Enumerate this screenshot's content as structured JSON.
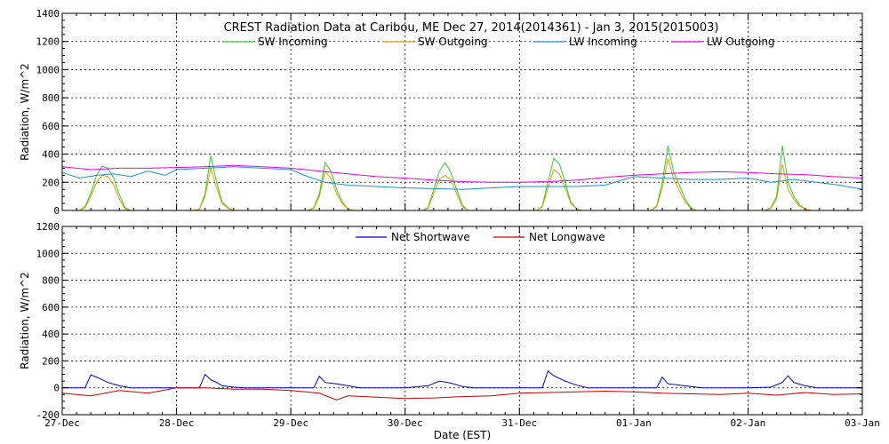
{
  "chart_data": [
    {
      "type": "line",
      "title": "CREST Radiation Data at Caribou, ME   Dec 27, 2014(2014361) - Jan  3, 2015(2015003)",
      "xlabel": "",
      "ylabel": "Radiation, W/m^2",
      "ylim": [
        0,
        1400
      ],
      "yticks": [
        "0",
        "200",
        "400",
        "600",
        "800",
        "1000",
        "1200",
        "1400"
      ],
      "xlim": [
        "27-Dec",
        "03-Jan"
      ],
      "grid": true,
      "legend_position": "top",
      "series": [
        {
          "name": "SW Incoming",
          "color": "#33cc33",
          "x": [
            0.1,
            0.15,
            0.2,
            0.25,
            0.3,
            0.35,
            0.4,
            0.45,
            0.5,
            0.55,
            0.6,
            1.1,
            1.15,
            1.2,
            1.25,
            1.3,
            1.35,
            1.4,
            1.45,
            1.5,
            1.55,
            1.6,
            2.1,
            2.15,
            2.2,
            2.25,
            2.3,
            2.35,
            2.4,
            2.45,
            2.5,
            2.55,
            2.6,
            3.1,
            3.15,
            3.2,
            3.25,
            3.3,
            3.35,
            3.4,
            3.45,
            3.5,
            3.55,
            3.6,
            4.1,
            4.15,
            4.2,
            4.25,
            4.3,
            4.35,
            4.4,
            4.45,
            4.5,
            4.55,
            4.6,
            5.1,
            5.15,
            5.2,
            5.25,
            5.3,
            5.35,
            5.4,
            5.45,
            5.5,
            5.55,
            5.6,
            6.1,
            6.15,
            6.2,
            6.25,
            6.3,
            6.35,
            6.4,
            6.45,
            6.5,
            6.55,
            6.6
          ],
          "y": [
            0,
            0,
            30,
            120,
            250,
            315,
            300,
            230,
            110,
            20,
            0,
            0,
            0,
            10,
            120,
            390,
            200,
            60,
            20,
            0,
            0,
            0,
            0,
            0,
            20,
            120,
            340,
            280,
            150,
            60,
            10,
            0,
            0,
            0,
            0,
            20,
            150,
            280,
            340,
            270,
            150,
            40,
            0,
            0,
            0,
            0,
            30,
            200,
            370,
            330,
            200,
            60,
            10,
            0,
            0,
            0,
            0,
            30,
            200,
            460,
            270,
            180,
            80,
            20,
            0,
            0,
            0,
            0,
            20,
            100,
            460,
            200,
            100,
            40,
            10,
            0,
            0
          ]
        },
        {
          "name": "SW Outgoing",
          "color": "#e69900",
          "x": [
            0.1,
            0.15,
            0.2,
            0.25,
            0.3,
            0.35,
            0.4,
            0.45,
            0.5,
            0.55,
            0.6,
            1.1,
            1.15,
            1.2,
            1.25,
            1.3,
            1.35,
            1.4,
            1.45,
            1.5,
            1.55,
            1.6,
            2.1,
            2.15,
            2.2,
            2.25,
            2.3,
            2.35,
            2.4,
            2.45,
            2.5,
            2.55,
            2.6,
            3.1,
            3.15,
            3.2,
            3.25,
            3.3,
            3.35,
            3.4,
            3.45,
            3.5,
            3.55,
            3.6,
            4.1,
            4.15,
            4.2,
            4.25,
            4.3,
            4.35,
            4.4,
            4.45,
            4.5,
            4.55,
            4.6,
            5.1,
            5.15,
            5.2,
            5.25,
            5.3,
            5.35,
            5.4,
            5.45,
            5.5,
            5.55,
            5.6,
            6.1,
            6.15,
            6.2,
            6.25,
            6.3,
            6.35,
            6.4,
            6.45,
            6.5,
            6.55,
            6.6
          ],
          "y": [
            0,
            0,
            20,
            100,
            200,
            250,
            240,
            180,
            80,
            10,
            0,
            0,
            0,
            10,
            100,
            300,
            160,
            50,
            15,
            0,
            0,
            0,
            0,
            0,
            15,
            100,
            280,
            230,
            120,
            50,
            10,
            0,
            0,
            0,
            0,
            15,
            120,
            220,
            250,
            220,
            120,
            30,
            0,
            0,
            0,
            0,
            25,
            160,
            290,
            260,
            160,
            50,
            10,
            0,
            0,
            0,
            0,
            25,
            160,
            370,
            220,
            140,
            60,
            15,
            0,
            0,
            0,
            0,
            15,
            80,
            330,
            150,
            80,
            30,
            10,
            0,
            0
          ]
        },
        {
          "name": "LW Incoming",
          "color": "#1a8fd6",
          "x": [
            0.0,
            0.15,
            0.3,
            0.45,
            0.6,
            0.75,
            0.9,
            1.0,
            1.25,
            1.5,
            1.75,
            2.0,
            2.15,
            2.3,
            2.5,
            2.75,
            3.0,
            3.5,
            4.0,
            4.25,
            4.5,
            4.75,
            5.0,
            5.25,
            5.5,
            5.75,
            6.0,
            6.2,
            6.4,
            6.6,
            6.8,
            7.0
          ],
          "y": [
            270,
            230,
            250,
            260,
            240,
            280,
            250,
            290,
            300,
            310,
            300,
            290,
            240,
            200,
            180,
            170,
            160,
            150,
            170,
            170,
            170,
            180,
            240,
            230,
            220,
            220,
            230,
            200,
            220,
            200,
            180,
            150
          ]
        },
        {
          "name": "LW Outgoing",
          "color": "#e600e6",
          "x": [
            0.0,
            0.25,
            0.5,
            0.75,
            1.0,
            1.25,
            1.5,
            1.75,
            2.0,
            2.25,
            2.5,
            2.75,
            3.0,
            3.25,
            3.5,
            3.75,
            4.0,
            4.25,
            4.5,
            4.75,
            5.0,
            5.25,
            5.5,
            5.75,
            6.0,
            6.25,
            6.5,
            6.75,
            7.0
          ],
          "y": [
            310,
            290,
            300,
            300,
            305,
            310,
            320,
            310,
            300,
            280,
            260,
            240,
            230,
            215,
            205,
            200,
            200,
            205,
            215,
            235,
            250,
            260,
            270,
            275,
            270,
            260,
            255,
            240,
            230
          ]
        }
      ]
    },
    {
      "type": "line",
      "title": "",
      "xlabel": "Date (EST)",
      "ylabel": "Radiation, W/m^2",
      "ylim": [
        -200,
        1200
      ],
      "yticks": [
        "-200",
        "0",
        "200",
        "400",
        "600",
        "800",
        "1000",
        "1200"
      ],
      "xticks": [
        "27-Dec",
        "28-Dec",
        "29-Dec",
        "30-Dec",
        "31-Dec",
        "01-Jan",
        "02-Jan",
        "03-Jan"
      ],
      "grid": true,
      "legend_position": "top",
      "series": [
        {
          "name": "Net Shortwave",
          "color": "#0000cc",
          "x": [
            0.0,
            0.2,
            0.25,
            0.3,
            0.35,
            0.4,
            0.5,
            0.6,
            1.0,
            1.2,
            1.25,
            1.3,
            1.35,
            1.4,
            1.5,
            1.6,
            2.0,
            2.2,
            2.25,
            2.3,
            2.4,
            2.5,
            2.6,
            3.0,
            3.2,
            3.3,
            3.4,
            3.5,
            3.6,
            4.0,
            4.2,
            4.25,
            4.3,
            4.4,
            4.5,
            4.6,
            5.0,
            5.2,
            5.25,
            5.3,
            5.4,
            5.5,
            5.6,
            6.0,
            6.2,
            6.3,
            6.35,
            6.4,
            6.5,
            6.6,
            7.0
          ],
          "y": [
            0,
            0,
            95,
            80,
            60,
            40,
            15,
            0,
            0,
            0,
            100,
            60,
            40,
            15,
            5,
            0,
            0,
            0,
            85,
            40,
            30,
            15,
            0,
            0,
            15,
            50,
            35,
            10,
            0,
            0,
            0,
            125,
            90,
            50,
            20,
            0,
            0,
            0,
            80,
            30,
            20,
            10,
            0,
            0,
            5,
            40,
            90,
            40,
            15,
            0,
            0
          ]
        },
        {
          "name": "Net Longwave",
          "color": "#cc0000",
          "x": [
            0.0,
            0.25,
            0.5,
            0.75,
            1.0,
            1.25,
            1.5,
            1.75,
            2.0,
            2.25,
            2.4,
            2.5,
            2.75,
            3.0,
            3.25,
            3.5,
            3.75,
            4.0,
            4.25,
            4.5,
            4.75,
            5.0,
            5.25,
            5.5,
            5.75,
            6.0,
            6.25,
            6.5,
            6.75,
            7.0
          ],
          "y": [
            -40,
            -60,
            -20,
            -40,
            0,
            0,
            -10,
            -10,
            -20,
            -40,
            -90,
            -60,
            -70,
            -80,
            -75,
            -65,
            -60,
            -40,
            -35,
            -30,
            -25,
            -30,
            -40,
            -45,
            -50,
            -40,
            -55,
            -35,
            -50,
            -45
          ]
        }
      ]
    }
  ]
}
